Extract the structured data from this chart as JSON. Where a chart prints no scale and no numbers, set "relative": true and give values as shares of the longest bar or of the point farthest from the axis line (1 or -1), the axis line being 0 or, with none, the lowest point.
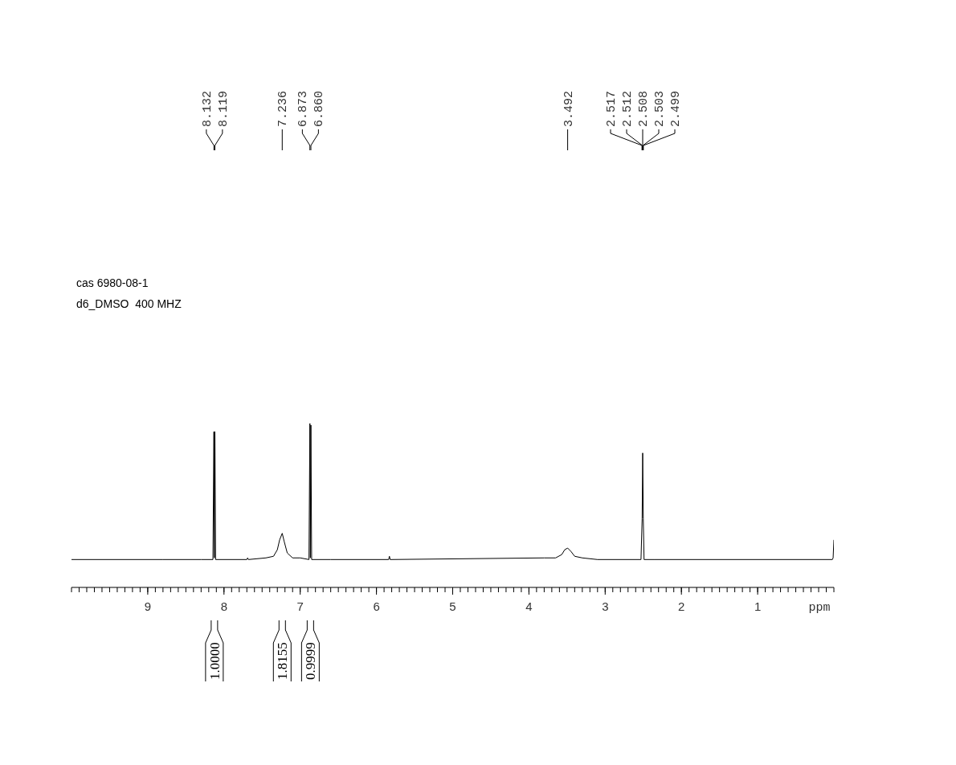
{
  "chart_data": {
    "type": "line",
    "relative": true,
    "xlabel": "ppm",
    "xlim": [
      10,
      0
    ],
    "marker": "none",
    "line_style": "solid",
    "xticks": [
      {
        "value": 10,
        "label": null
      },
      {
        "value": 9.9,
        "label": null
      },
      {
        "value": 9.8,
        "label": null
      },
      {
        "value": 9.7,
        "label": null
      },
      {
        "value": 9.6,
        "label": null
      },
      {
        "value": 9.5,
        "label": null
      },
      {
        "value": 9.4,
        "label": null
      },
      {
        "value": 9.3,
        "label": null
      },
      {
        "value": 9.2,
        "label": null
      },
      {
        "value": 9.1,
        "label": null
      },
      9,
      {
        "value": 8.9,
        "label": null
      },
      {
        "value": 8.8,
        "label": null
      },
      {
        "value": 8.7,
        "label": null
      },
      {
        "value": 8.6,
        "label": null
      },
      {
        "value": 8.5,
        "label": null
      },
      {
        "value": 8.4,
        "label": null
      },
      {
        "value": 8.3,
        "label": null
      },
      {
        "value": 8.2,
        "label": null
      },
      {
        "value": 8.1,
        "label": null
      },
      8,
      {
        "value": 7.9,
        "label": null
      },
      {
        "value": 7.8,
        "label": null
      },
      {
        "value": 7.7,
        "label": null
      },
      {
        "value": 7.6,
        "label": null
      },
      {
        "value": 7.5,
        "label": null
      },
      {
        "value": 7.4,
        "label": null
      },
      {
        "value": 7.3,
        "label": null
      },
      {
        "value": 7.2,
        "label": null
      },
      {
        "value": 7.1,
        "label": null
      },
      7,
      {
        "value": 6.9,
        "label": null
      },
      {
        "value": 6.8,
        "label": null
      },
      {
        "value": 6.7,
        "label": null
      },
      {
        "value": 6.6,
        "label": null
      },
      {
        "value": 6.5,
        "label": null
      },
      {
        "value": 6.4,
        "label": null
      },
      {
        "value": 6.3,
        "label": null
      },
      {
        "value": 6.2,
        "label": null
      },
      {
        "value": 6.1,
        "label": null
      },
      6,
      {
        "value": 5.9,
        "label": null
      },
      {
        "value": 5.8,
        "label": null
      },
      {
        "value": 5.7,
        "label": null
      },
      {
        "value": 5.6,
        "label": null
      },
      {
        "value": 5.5,
        "label": null
      },
      {
        "value": 5.4,
        "label": null
      },
      {
        "value": 5.3,
        "label": null
      },
      {
        "value": 5.2,
        "label": null
      },
      {
        "value": 5.1,
        "label": null
      },
      5,
      {
        "value": 4.9,
        "label": null
      },
      {
        "value": 4.8,
        "label": null
      },
      {
        "value": 4.7,
        "label": null
      },
      {
        "value": 4.6,
        "label": null
      },
      {
        "value": 4.5,
        "label": null
      },
      {
        "value": 4.4,
        "label": null
      },
      {
        "value": 4.3,
        "label": null
      },
      {
        "value": 4.2,
        "label": null
      },
      {
        "value": 4.1,
        "label": null
      },
      4,
      {
        "value": 3.9,
        "label": null
      },
      {
        "value": 3.8,
        "label": null
      },
      {
        "value": 3.7,
        "label": null
      },
      {
        "value": 3.6,
        "label": null
      },
      {
        "value": 3.5,
        "label": null
      },
      {
        "value": 3.4,
        "label": null
      },
      {
        "value": 3.3,
        "label": null
      },
      {
        "value": 3.2,
        "label": null
      },
      {
        "value": 3.1,
        "label": null
      },
      3,
      {
        "value": 2.9,
        "label": null
      },
      {
        "value": 2.8,
        "label": null
      },
      {
        "value": 2.7,
        "label": null
      },
      {
        "value": 2.6,
        "label": null
      },
      {
        "value": 2.5,
        "label": null
      },
      {
        "value": 2.4,
        "label": null
      },
      {
        "value": 2.3,
        "label": null
      },
      {
        "value": 2.2,
        "label": null
      },
      {
        "value": 2.1,
        "label": null
      },
      2,
      {
        "value": 1.9,
        "label": null
      },
      {
        "value": 1.8,
        "label": null
      },
      {
        "value": 1.7,
        "label": null
      },
      {
        "value": 1.6,
        "label": null
      },
      {
        "value": 1.5,
        "label": null
      },
      {
        "value": 1.4,
        "label": null
      },
      {
        "value": 1.3,
        "label": null
      },
      {
        "value": 1.2,
        "label": null
      },
      {
        "value": 1.1,
        "label": null
      },
      1,
      {
        "value": 0.9,
        "label": null
      },
      {
        "value": 0.8,
        "label": null
      },
      {
        "value": 0.7,
        "label": null
      },
      {
        "value": 0.6,
        "label": null
      },
      {
        "value": 0.5,
        "label": null
      },
      {
        "value": 0.4,
        "label": null
      },
      {
        "value": 0.3,
        "label": null
      },
      {
        "value": 0.2,
        "label": null
      },
      {
        "value": 0.1,
        "label": null
      },
      {
        "value": 0,
        "label": null
      }
    ],
    "series": [
      {
        "color": "#000000",
        "x": [
          10,
          8.8,
          8.3,
          8.145,
          8.132,
          8.126,
          8.119,
          8.11,
          7.7,
          7.69,
          7.68,
          7.45,
          7.35,
          7.3,
          7.27,
          7.236,
          7.21,
          7.17,
          7.1,
          7.0,
          6.885,
          6.873,
          6.867,
          6.86,
          6.85,
          6.6,
          5.84,
          5.83,
          5.82,
          3.8,
          3.65,
          3.57,
          3.53,
          3.492,
          3.45,
          3.4,
          3.3,
          3.1,
          2.53,
          2.515,
          2.508,
          2.5,
          2.49,
          2.35,
          0.02,
          0.01,
          0
        ],
        "values": [
          0.17,
          0.17,
          0.17,
          0.17,
          0.95,
          0.18,
          0.95,
          0.17,
          0.17,
          0.18,
          0.17,
          0.18,
          0.19,
          0.23,
          0.29,
          0.33,
          0.28,
          0.21,
          0.18,
          0.18,
          0.17,
          1.0,
          0.18,
          0.99,
          0.17,
          0.17,
          0.17,
          0.19,
          0.17,
          0.18,
          0.18,
          0.2,
          0.23,
          0.24,
          0.22,
          0.19,
          0.18,
          0.17,
          0.17,
          0.42,
          0.82,
          0.42,
          0.17,
          0.17,
          0.17,
          0.18,
          0.29
        ]
      }
    ],
    "annotations": [
      "cas 6980-08-1",
      "d6_DMSO  400 MHZ",
      {
        "text": "8.132",
        "x": 8.132
      },
      {
        "text": "8.119",
        "x": 8.119
      },
      {
        "text": "7.236",
        "x": 7.236
      },
      {
        "text": "6.873",
        "x": 6.873
      },
      {
        "text": "6.860",
        "x": 6.86
      },
      {
        "text": "3.492",
        "x": 3.492
      },
      {
        "text": "2.517",
        "x": 2.517
      },
      {
        "text": "2.512",
        "x": 2.512
      },
      {
        "text": "2.508",
        "x": 2.508
      },
      {
        "text": "2.503",
        "x": 2.503
      },
      {
        "text": "2.499",
        "x": 2.499
      },
      "1.0000",
      "1.8155",
      "0.9999"
    ]
  }
}
